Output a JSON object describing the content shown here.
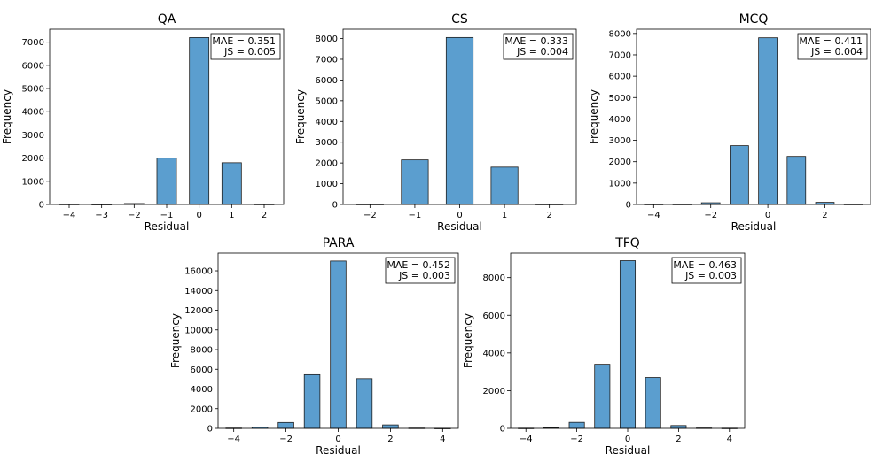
{
  "figure": {
    "stat_template": {
      "mae_prefix": "MAE = ",
      "js_prefix": "JS = "
    },
    "bar_color": "#5b9ecf",
    "bar_edge_color": "#1f1f1f"
  },
  "chart_data": [
    {
      "type": "bar",
      "title": "QA",
      "xlabel": "Residual",
      "ylabel": "Frequency",
      "x": [
        -4,
        -3,
        -2,
        -1,
        0,
        1,
        2
      ],
      "values": [
        10,
        5,
        40,
        2000,
        7200,
        1800,
        10
      ],
      "xlim": [
        -4.6,
        2.6
      ],
      "ylim": [
        0,
        7560
      ],
      "xticks": [
        -4,
        -3,
        -2,
        -1,
        0,
        1,
        2
      ],
      "xtick_labels": [
        "−4",
        "−3",
        "−2",
        "−1",
        "0",
        "1",
        "2"
      ],
      "yticks": [
        0,
        1000,
        2000,
        3000,
        4000,
        5000,
        6000,
        7000
      ],
      "ytick_labels": [
        "0",
        "1000",
        "2000",
        "3000",
        "4000",
        "5000",
        "6000",
        "7000"
      ],
      "mae": "0.351",
      "js": "0.005",
      "legend_placement": "top-right"
    },
    {
      "type": "bar",
      "title": "CS",
      "xlabel": "Residual",
      "ylabel": "Frequency",
      "x": [
        -2,
        -1,
        0,
        1,
        2
      ],
      "values": [
        10,
        2150,
        8050,
        1800,
        10
      ],
      "xlim": [
        -2.6,
        2.6
      ],
      "ylim": [
        0,
        8450
      ],
      "xticks": [
        -2,
        -1,
        0,
        1,
        2
      ],
      "xtick_labels": [
        "−2",
        "−1",
        "0",
        "1",
        "2"
      ],
      "yticks": [
        0,
        1000,
        2000,
        3000,
        4000,
        5000,
        6000,
        7000,
        8000
      ],
      "ytick_labels": [
        "0",
        "1000",
        "2000",
        "3000",
        "4000",
        "5000",
        "6000",
        "7000",
        "8000"
      ],
      "mae": "0.333",
      "js": "0.004",
      "legend_placement": "top-right"
    },
    {
      "type": "bar",
      "title": "MCQ",
      "xlabel": "Residual",
      "ylabel": "Frequency",
      "x": [
        -4,
        -3,
        -2,
        -1,
        0,
        1,
        2,
        3
      ],
      "values": [
        10,
        10,
        80,
        2750,
        7800,
        2250,
        100,
        10
      ],
      "xlim": [
        -4.6,
        3.6
      ],
      "ylim": [
        0,
        8200
      ],
      "xticks": [
        -4,
        -2,
        0,
        2
      ],
      "xtick_labels": [
        "−4",
        "−2",
        "0",
        "2"
      ],
      "yticks": [
        0,
        1000,
        2000,
        3000,
        4000,
        5000,
        6000,
        7000,
        8000
      ],
      "ytick_labels": [
        "0",
        "1000",
        "2000",
        "3000",
        "4000",
        "5000",
        "6000",
        "7000",
        "8000"
      ],
      "mae": "0.411",
      "js": "0.004",
      "legend_placement": "top-right"
    },
    {
      "type": "bar",
      "title": "PARA",
      "xlabel": "Residual",
      "ylabel": "Frequency",
      "x": [
        -4,
        -3,
        -2,
        -1,
        0,
        1,
        2,
        3,
        4
      ],
      "values": [
        30,
        120,
        600,
        5450,
        17000,
        5050,
        350,
        30,
        10
      ],
      "xlim": [
        -4.6,
        4.6
      ],
      "ylim": [
        0,
        17800
      ],
      "xticks": [
        -4,
        -2,
        0,
        2,
        4
      ],
      "xtick_labels": [
        "−4",
        "−2",
        "0",
        "2",
        "4"
      ],
      "yticks": [
        0,
        2000,
        4000,
        6000,
        8000,
        10000,
        12000,
        14000,
        16000
      ],
      "ytick_labels": [
        "0",
        "2000",
        "4000",
        "6000",
        "8000",
        "10000",
        "12000",
        "14000",
        "16000"
      ],
      "mae": "0.452",
      "js": "0.003",
      "legend_placement": "top-right"
    },
    {
      "type": "bar",
      "title": "TFQ",
      "xlabel": "Residual",
      "ylabel": "Frequency",
      "x": [
        -4,
        -3,
        -2,
        -1,
        0,
        1,
        2,
        3,
        4
      ],
      "values": [
        10,
        40,
        320,
        3400,
        8900,
        2700,
        150,
        20,
        10
      ],
      "xlim": [
        -4.6,
        4.6
      ],
      "ylim": [
        0,
        9300
      ],
      "xticks": [
        -4,
        -2,
        0,
        2,
        4
      ],
      "xtick_labels": [
        "−4",
        "−2",
        "0",
        "2",
        "4"
      ],
      "yticks": [
        0,
        2000,
        4000,
        6000,
        8000
      ],
      "ytick_labels": [
        "0",
        "2000",
        "4000",
        "6000",
        "8000"
      ],
      "mae": "0.463",
      "js": "0.003",
      "legend_placement": "top-right"
    }
  ]
}
